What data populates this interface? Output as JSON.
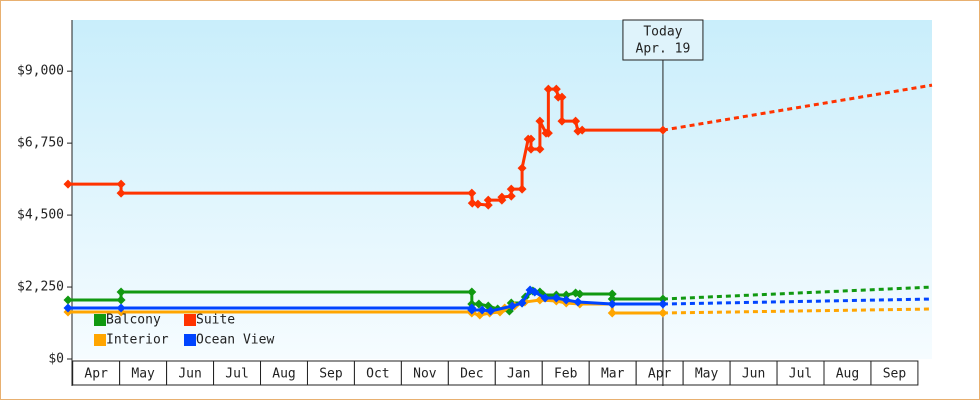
{
  "chart_data": {
    "type": "line",
    "xlim": [
      -0.1,
      18.3
    ],
    "xticks": [
      {
        "value": 0.5,
        "label": "Apr"
      },
      {
        "value": 1.5,
        "label": "May"
      },
      {
        "value": 2.5,
        "label": "Jun"
      },
      {
        "value": 3.5,
        "label": "Jul"
      },
      {
        "value": 4.5,
        "label": "Aug"
      },
      {
        "value": 5.5,
        "label": "Sep"
      },
      {
        "value": 6.5,
        "label": "Oct"
      },
      {
        "value": 7.5,
        "label": "Nov"
      },
      {
        "value": 8.5,
        "label": "Dec"
      },
      {
        "value": 9.5,
        "label": "Jan"
      },
      {
        "value": 10.5,
        "label": "Feb"
      },
      {
        "value": 11.5,
        "label": "Mar"
      },
      {
        "value": 12.5,
        "label": "Apr"
      },
      {
        "value": 13.5,
        "label": "May"
      },
      {
        "value": 14.5,
        "label": "Jun"
      },
      {
        "value": 15.5,
        "label": "Jul"
      },
      {
        "value": 16.5,
        "label": "Aug"
      },
      {
        "value": 17.5,
        "label": "Sep"
      }
    ],
    "ylim": [
      0,
      10600
    ],
    "yticks": [
      {
        "value": 0,
        "label": "$0"
      },
      {
        "value": 2250,
        "label": "$2,250"
      },
      {
        "value": 4500,
        "label": "$4,500"
      },
      {
        "value": 6750,
        "label": "$6,750"
      },
      {
        "value": 9000,
        "label": "$9,000"
      }
    ],
    "today": {
      "x": 12.57,
      "label": [
        "Today",
        "Apr. 19"
      ]
    },
    "series": [
      {
        "name": "Balcony",
        "color": "#119911",
        "x": [
          -0.1,
          1.03,
          1.03,
          8.5,
          8.5,
          8.65,
          8.85,
          9.05,
          9.3,
          9.34,
          9.57,
          9.64,
          9.8,
          9.95,
          10.02,
          10.3,
          10.51,
          10.71,
          10.8,
          11.49,
          11.49,
          12.57
        ],
        "values": [
          1844,
          1844,
          2094,
          2094,
          1719,
          1719,
          1656,
          1563,
          1500,
          1750,
          1750,
          1938,
          2125,
          2094,
          2000,
          2000,
          2000,
          2063,
          2031,
          2031,
          1875,
          1875
        ],
        "projection": {
          "x": [
            12.57,
            18.3
          ],
          "values": [
            1875,
            2250
          ]
        }
      },
      {
        "name": "Suite",
        "color": "#ff3300",
        "x": [
          -0.1,
          1.03,
          1.03,
          8.5,
          8.51,
          8.63,
          8.85,
          8.85,
          9.14,
          9.14,
          9.34,
          9.34,
          9.57,
          9.57,
          9.7,
          9.76,
          9.76,
          9.95,
          9.95,
          10.08,
          10.13,
          10.13,
          10.3,
          10.34,
          10.42,
          10.42,
          10.71,
          10.76,
          10.85,
          12.57
        ],
        "values": [
          5469,
          5469,
          5188,
          5188,
          4875,
          4844,
          4813,
          4969,
          4969,
          5063,
          5094,
          5313,
          5313,
          5969,
          6875,
          6875,
          6563,
          6563,
          7438,
          7063,
          7063,
          8438,
          8438,
          8188,
          8188,
          7438,
          7438,
          7125,
          7156,
          7156
        ],
        "projection": {
          "x": [
            12.57,
            18.3
          ],
          "values": [
            7156,
            8563
          ]
        }
      },
      {
        "name": "Interior",
        "color": "#ffa500",
        "x": [
          -0.1,
          1.03,
          8.5,
          8.5,
          8.67,
          8.88,
          9.1,
          9.2,
          9.41,
          9.63,
          9.95,
          10.3,
          10.51,
          10.8,
          11.49,
          11.49,
          12.57
        ],
        "values": [
          1469,
          1469,
          1469,
          1438,
          1375,
          1438,
          1469,
          1594,
          1656,
          1781,
          1844,
          1813,
          1750,
          1719,
          1719,
          1438,
          1438
        ],
        "projection": {
          "x": [
            12.57,
            18.3
          ],
          "values": [
            1438,
            1563
          ]
        }
      },
      {
        "name": "Ocean View",
        "color": "#0044ff",
        "x": [
          -0.1,
          1.03,
          8.5,
          8.5,
          8.72,
          8.9,
          9.36,
          9.57,
          9.74,
          9.84,
          10.06,
          10.3,
          10.51,
          10.76,
          11.49,
          12.57
        ],
        "values": [
          1594,
          1594,
          1594,
          1531,
          1531,
          1500,
          1656,
          1750,
          2156,
          2094,
          1906,
          1906,
          1844,
          1781,
          1719,
          1719
        ],
        "projection": {
          "x": [
            12.57,
            18.3
          ],
          "values": [
            1719,
            1875
          ]
        }
      }
    ]
  }
}
